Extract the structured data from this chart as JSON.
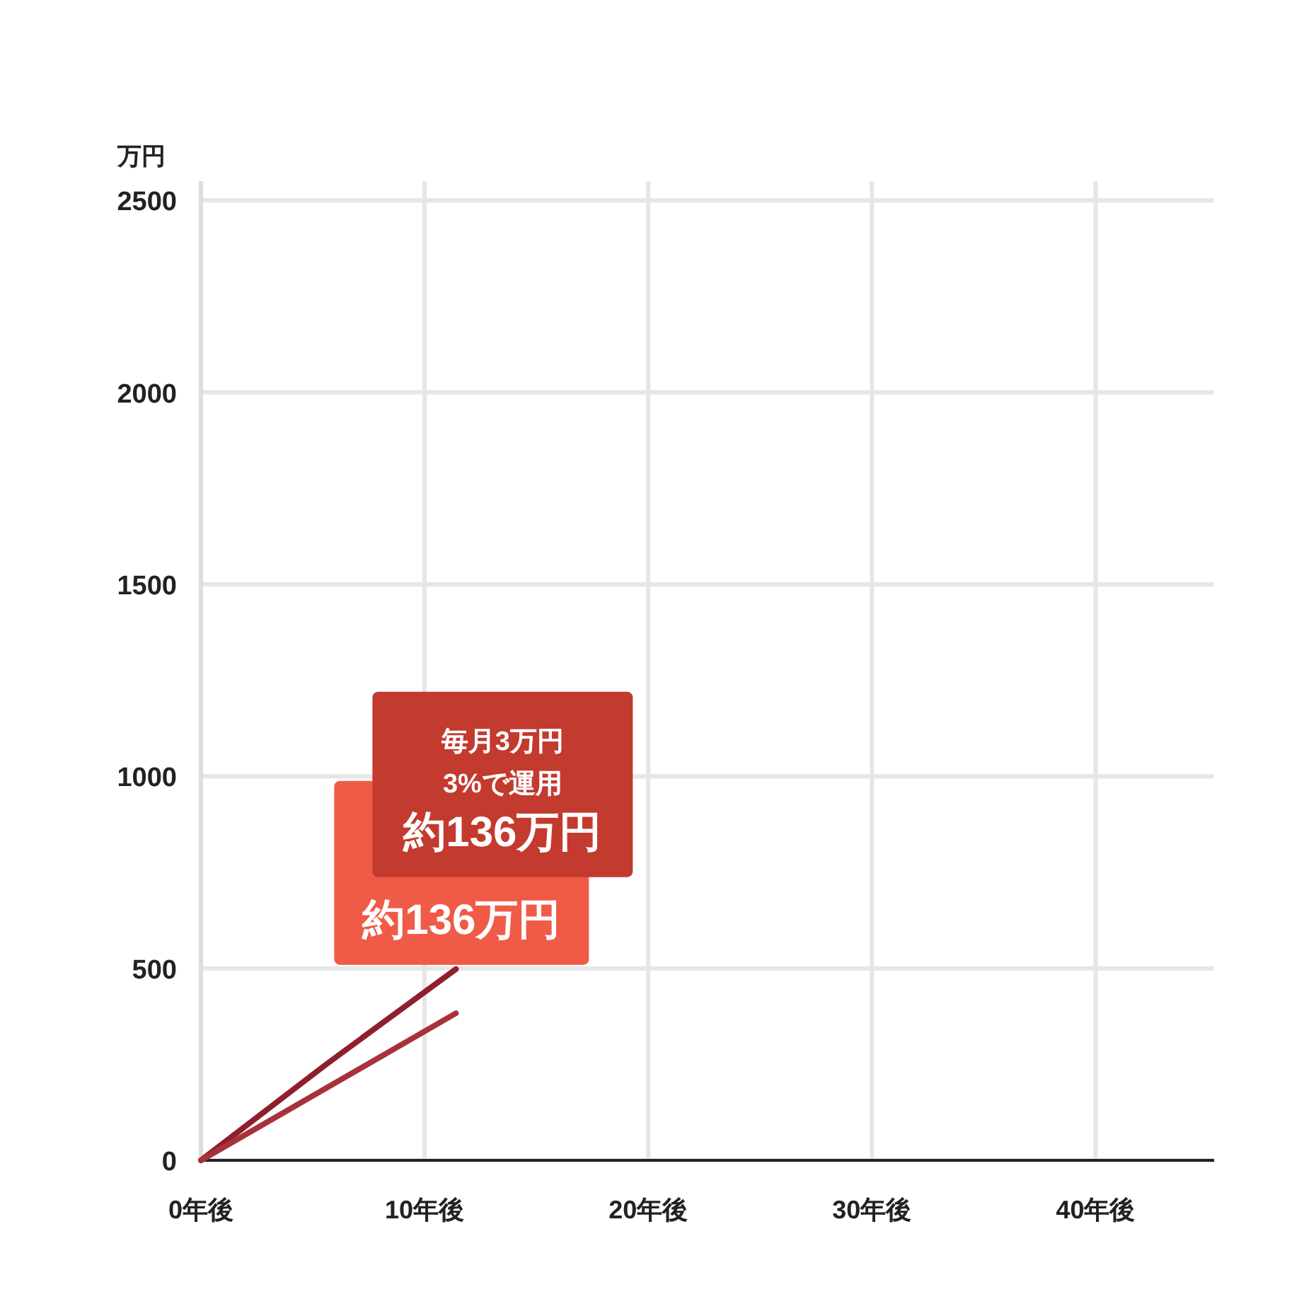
{
  "chart_data": {
    "type": "line",
    "ylabel": "万円",
    "xlim": [
      0,
      45.3
    ],
    "ylim": [
      0,
      2550
    ],
    "xticks": [
      {
        "value": 0,
        "label": "0年後"
      },
      {
        "value": 10,
        "label": "10年後"
      },
      {
        "value": 20,
        "label": "20年後"
      },
      {
        "value": 30,
        "label": "30年後"
      },
      {
        "value": 40,
        "label": "40年後"
      }
    ],
    "yticks": [
      0,
      500,
      1000,
      1500,
      2000,
      2500
    ],
    "grid": true,
    "series": [
      {
        "color": "#8e1f2c",
        "x": [
          0,
          5.6,
          11.4
        ],
        "values": [
          0,
          250,
          498
        ]
      },
      {
        "color": "#a8323c",
        "x": [
          0,
          11.4
        ],
        "values": [
          0,
          383
        ]
      }
    ],
    "annotations": [
      "約136万円",
      "毎月3万円",
      "3%で運用",
      "約136万円"
    ]
  }
}
